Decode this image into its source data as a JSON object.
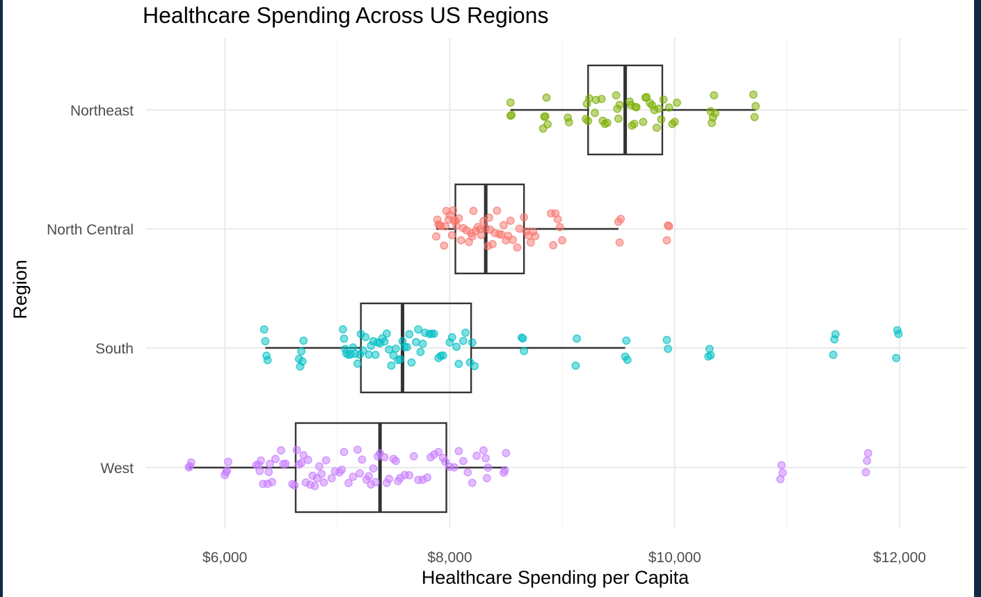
{
  "chart_data": {
    "type": "boxplot",
    "title": "Healthcare Spending Across US Regions",
    "xlabel": "Healthcare Spending per Capita",
    "ylabel": "Region",
    "xlim": [
      5300,
      12600
    ],
    "x_ticks": [
      6000,
      8000,
      10000,
      12000
    ],
    "x_tick_labels": [
      "$6,000",
      "$8,000",
      "$10,000",
      "$12,000"
    ],
    "categories": [
      "Northeast",
      "North Central",
      "South",
      "West"
    ],
    "grid": true,
    "legend": "none",
    "series": [
      {
        "category": "Northeast",
        "color": "#7CAE00",
        "box": {
          "lower_whisker": 8540,
          "q1": 9230,
          "median": 9560,
          "q3": 9890,
          "upper_whisker": 10720
        },
        "points": [
          8540,
          8540,
          8550,
          8830,
          8840,
          8850,
          8860,
          8870,
          9050,
          9060,
          9210,
          9220,
          9230,
          9240,
          9290,
          9300,
          9350,
          9360,
          9380,
          9400,
          9480,
          9490,
          9500,
          9510,
          9600,
          9610,
          9620,
          9640,
          9650,
          9660,
          9720,
          9740,
          9750,
          9780,
          9800,
          9820,
          9840,
          9860,
          9880,
          9900,
          9950,
          9980,
          10000,
          10020,
          10320,
          10330,
          10340,
          10350,
          10360,
          10700,
          10710,
          10720
        ]
      },
      {
        "category": "North Central",
        "color": "#F8766D",
        "box": {
          "lower_whisker": 7880,
          "q1": 8050,
          "median": 8320,
          "q3": 8660,
          "upper_whisker": 9500
        },
        "points": [
          7880,
          7890,
          7900,
          7910,
          7920,
          7950,
          7960,
          7970,
          7990,
          8000,
          8020,
          8030,
          8040,
          8050,
          8060,
          8080,
          8100,
          8120,
          8150,
          8170,
          8190,
          8200,
          8210,
          8230,
          8250,
          8270,
          8280,
          8300,
          8320,
          8340,
          8350,
          8360,
          8380,
          8400,
          8420,
          8440,
          8460,
          8480,
          8500,
          8520,
          8540,
          8560,
          8600,
          8620,
          8660,
          8680,
          8700,
          8720,
          8740,
          8760,
          8900,
          8920,
          8940,
          8960,
          8980,
          9000,
          9500,
          9510,
          9520,
          9930,
          9940,
          9950
        ]
      },
      {
        "category": "South",
        "color": "#00BFC4",
        "box": {
          "lower_whisker": 6360,
          "q1": 7210,
          "median": 7580,
          "q3": 8190,
          "upper_whisker": 9560
        },
        "points": [
          6350,
          6360,
          6370,
          6380,
          6660,
          6670,
          6680,
          6690,
          6700,
          7050,
          7060,
          7070,
          7080,
          7100,
          7120,
          7140,
          7160,
          7180,
          7200,
          7210,
          7230,
          7250,
          7280,
          7300,
          7320,
          7340,
          7360,
          7380,
          7400,
          7420,
          7440,
          7460,
          7480,
          7500,
          7520,
          7540,
          7560,
          7580,
          7600,
          7620,
          7640,
          7660,
          7700,
          7720,
          7740,
          7760,
          7780,
          7820,
          7840,
          7860,
          7900,
          7920,
          7940,
          8000,
          8020,
          8060,
          8080,
          8120,
          8140,
          8180,
          8200,
          8220,
          8640,
          8650,
          8660,
          9120,
          9130,
          9560,
          9570,
          9580,
          9930,
          9940,
          10300,
          10310,
          10320,
          11410,
          11420,
          11430,
          11970,
          11980,
          11990
        ]
      },
      {
        "category": "West",
        "color": "#C77CFF",
        "box": {
          "lower_whisker": 5680,
          "q1": 6630,
          "median": 7380,
          "q3": 7970,
          "upper_whisker": 8510
        },
        "points": [
          5680,
          5690,
          5700,
          6000,
          6010,
          6020,
          6030,
          6280,
          6300,
          6310,
          6320,
          6340,
          6380,
          6390,
          6400,
          6420,
          6450,
          6500,
          6520,
          6540,
          6600,
          6620,
          6640,
          6660,
          6680,
          6700,
          6720,
          6740,
          6760,
          6780,
          6800,
          6820,
          6840,
          6860,
          6880,
          6900,
          6950,
          6980,
          7020,
          7040,
          7060,
          7100,
          7140,
          7180,
          7200,
          7220,
          7260,
          7280,
          7300,
          7320,
          7340,
          7360,
          7380,
          7420,
          7440,
          7460,
          7500,
          7520,
          7540,
          7560,
          7600,
          7640,
          7680,
          7720,
          7760,
          7800,
          7830,
          7860,
          7900,
          7940,
          7960,
          8000,
          8040,
          8080,
          8120,
          8160,
          8200,
          8240,
          8300,
          8320,
          8330,
          8340,
          8480,
          8490,
          8500,
          10940,
          10950,
          10960,
          11700,
          11710,
          11720
        ]
      }
    ]
  }
}
